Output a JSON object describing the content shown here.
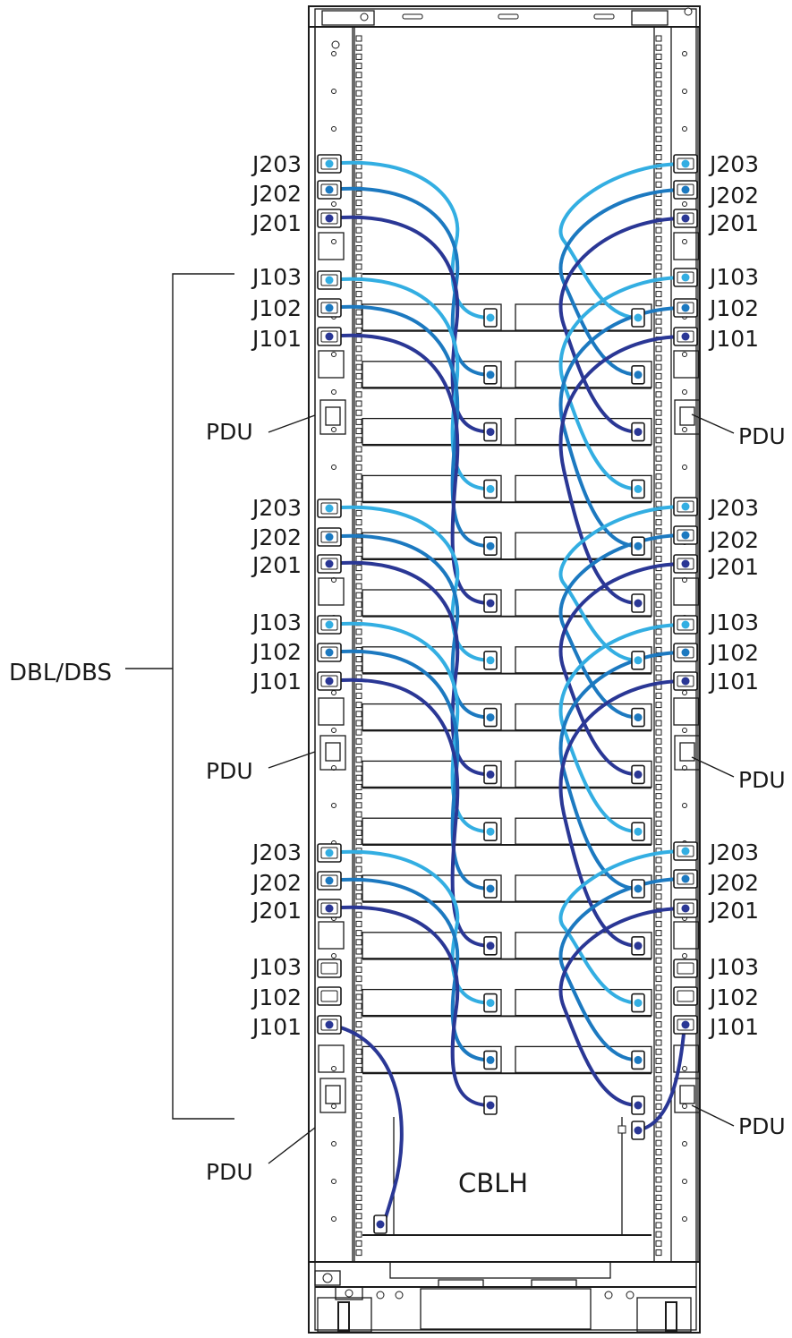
{
  "colors": {
    "j103_cable": "#33aee2",
    "j102_cable": "#1c79c0",
    "j101_cable": "#2a3795",
    "outline": "#1a1a1a"
  },
  "labels": {
    "jack_j203": "J203",
    "jack_j202": "J202",
    "jack_j201": "J201",
    "jack_j103": "J103",
    "jack_j102": "J102",
    "jack_j101": "J101",
    "pdu": "PDU",
    "dbl_dbs": "DBL/DBS",
    "cblh": "CBLH"
  },
  "jack_groups": [
    {
      "name": "group-1",
      "labels": [
        "J203",
        "J202",
        "J201",
        "J103",
        "J102",
        "J101"
      ]
    },
    {
      "name": "group-2",
      "labels": [
        "J203",
        "J202",
        "J201",
        "J103",
        "J102",
        "J101"
      ]
    },
    {
      "name": "group-3",
      "labels": [
        "J203",
        "J202",
        "J201",
        "J103",
        "J102",
        "J101"
      ]
    }
  ],
  "drive_enclosures": 14
}
